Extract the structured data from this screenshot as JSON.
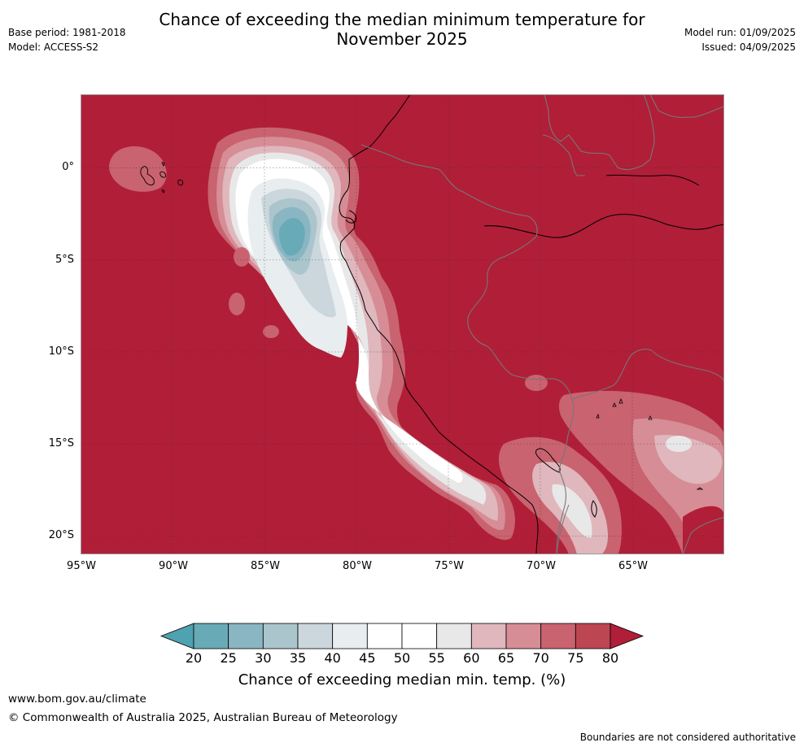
{
  "title": {
    "line1": "Chance of exceeding the median minimum temperature for",
    "line2": "November 2025"
  },
  "header_left": {
    "base_period": "Base period: 1981-2018",
    "model": "Model: ACCESS-S2"
  },
  "header_right": {
    "model_run": "Model run: 01/09/2025",
    "issued": "Issued: 04/09/2025"
  },
  "map": {
    "lon_range": [
      -95,
      -60
    ],
    "lat_range": [
      -21,
      4
    ],
    "lat_ticks": [
      "0°",
      "5°S",
      "10°S",
      "15°S",
      "20°S"
    ],
    "lon_ticks": [
      "95°W",
      "90°W",
      "85°W",
      "80°W",
      "75°W",
      "70°W",
      "65°W"
    ],
    "background_class": "80",
    "gridlines": "dotted"
  },
  "colorbar": {
    "ticks": [
      "20",
      "25",
      "30",
      "35",
      "40",
      "45",
      "50",
      "55",
      "60",
      "65",
      "70",
      "75",
      "80"
    ],
    "colors": [
      "#69aab7",
      "#8ab5c2",
      "#aac5cc",
      "#cbd7dc",
      "#e8edf0",
      "#ffffff",
      "#ffffff",
      "#e8e8e8",
      "#dfb7bd",
      "#d68d96",
      "#c8636f",
      "#bd4653"
    ],
    "under_color": "#4fa2b0",
    "over_color": "#b11e38",
    "label": "Chance of exceeding median min. temp. (%)"
  },
  "footer": {
    "url": "www.bom.gov.au/climate",
    "copyright": "© Commonwealth of Australia 2025, Australian Bureau of Meteorology",
    "disclaimer": "Boundaries are not considered authoritative"
  }
}
